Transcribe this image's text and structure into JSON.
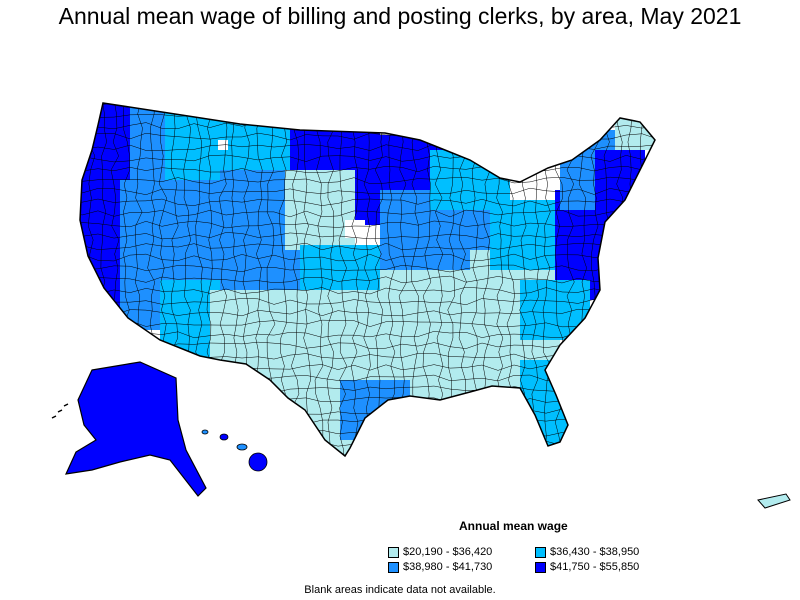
{
  "title": "Annual mean wage of billing and posting clerks, by area, May 2021",
  "legend": {
    "title": "Annual mean wage",
    "items": [
      {
        "label": "$20,190 - $36,420",
        "color": "#b2ebee"
      },
      {
        "label": "$36,430 - $38,950",
        "color": "#00bfff"
      },
      {
        "label": "$38,980 - $41,730",
        "color": "#1e90ff"
      },
      {
        "label": "$41,750 - $55,850",
        "color": "#0000ff"
      }
    ]
  },
  "footnote": "Blank areas indicate data not available.",
  "colors": {
    "border": "#000000",
    "no_data": "#ffffff",
    "background": "#ffffff"
  }
}
